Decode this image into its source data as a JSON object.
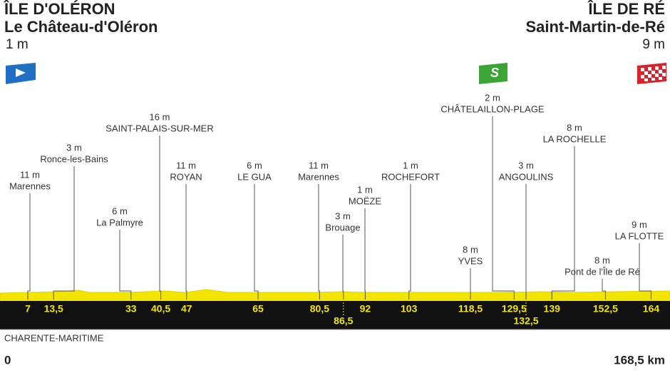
{
  "start": {
    "region": "ÎLE D'OLÉRON",
    "town": "Le Château-d'Oléron",
    "altitude": "1 m"
  },
  "finish": {
    "region": "ÎLE DE RÉ",
    "town": "Saint-Martin-de-Ré",
    "altitude": "9 m"
  },
  "department": "CHARENTE-MARITIME",
  "distance": {
    "start": "0",
    "end": "168,5 km"
  },
  "waypoints": [
    {
      "km": "7",
      "altitude": "11 m",
      "name": "Marennes"
    },
    {
      "km": "13,5",
      "altitude": "3 m",
      "name": "Ronce-les-Bains"
    },
    {
      "km": "33",
      "altitude": "6 m",
      "name": "La Palmyre"
    },
    {
      "km": "40,5",
      "altitude": "16 m",
      "name": "SAINT-PALAIS-SUR-MER"
    },
    {
      "km": "47",
      "altitude": "11 m",
      "name": "ROYAN"
    },
    {
      "km": "65",
      "altitude": "6 m",
      "name": "LE GUA"
    },
    {
      "km": "80,5",
      "altitude": "11 m",
      "name": "Marennes"
    },
    {
      "km": "86,5",
      "altitude": "3 m",
      "name": "Brouage"
    },
    {
      "km": "92",
      "altitude": "1 m",
      "name": "MOËZE"
    },
    {
      "km": "103",
      "altitude": "1 m",
      "name": "ROCHEFORT"
    },
    {
      "km": "118,5",
      "altitude": "8 m",
      "name": "YVES"
    },
    {
      "km": "129,5",
      "altitude": "2 m",
      "name": "CHÂTELAILLON-PLAGE"
    },
    {
      "km": "132,5",
      "altitude": "3 m",
      "name": "ANGOULINS"
    },
    {
      "km": "139",
      "altitude": "8 m",
      "name": "LA ROCHELLE"
    },
    {
      "km": "152,5",
      "altitude": "8 m",
      "name": "Pont de l'Île de Ré"
    },
    {
      "km": "164",
      "altitude": "9 m",
      "name": "LA FLOTTE"
    }
  ]
}
